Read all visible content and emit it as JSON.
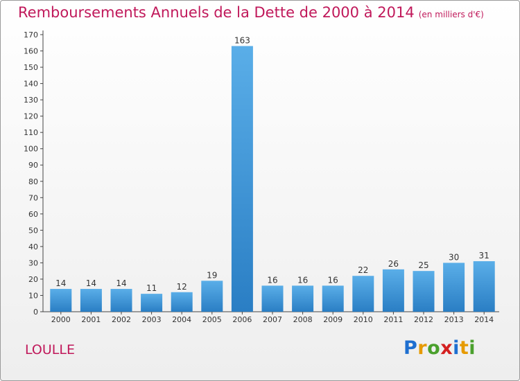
{
  "header": {
    "title": "Remboursements Annuels de la Dette de 2000 à 2014",
    "unit": "(en milliers d'€)"
  },
  "commune": "LOULLE",
  "logo": {
    "letters": [
      "P",
      "r",
      "o",
      "x",
      "i",
      "t",
      "i"
    ],
    "colors": [
      "#1e6fd0",
      "#e69a00",
      "#4aa02c",
      "#d42020",
      "#1e6fd0",
      "#e69a00",
      "#4aa02c"
    ]
  },
  "colors": {
    "bar_light": "#5aaee8",
    "bar_dark": "#2a7ec4",
    "title": "#c0185a"
  },
  "chart_data": {
    "type": "bar",
    "title": "Remboursements Annuels de la Dette de 2000 à 2014",
    "unit": "(en milliers d'€)",
    "categories": [
      "2000",
      "2001",
      "2002",
      "2003",
      "2004",
      "2005",
      "2006",
      "2007",
      "2008",
      "2009",
      "2010",
      "2011",
      "2012",
      "2013",
      "2014"
    ],
    "values": [
      14,
      14,
      14,
      11,
      12,
      19,
      163,
      16,
      16,
      16,
      22,
      26,
      25,
      30,
      31
    ],
    "ylim": [
      0,
      170
    ],
    "yticks": [
      0,
      10,
      20,
      30,
      40,
      50,
      60,
      70,
      80,
      90,
      100,
      110,
      120,
      130,
      140,
      150,
      160,
      170
    ],
    "grid": false,
    "data_labels": true
  }
}
